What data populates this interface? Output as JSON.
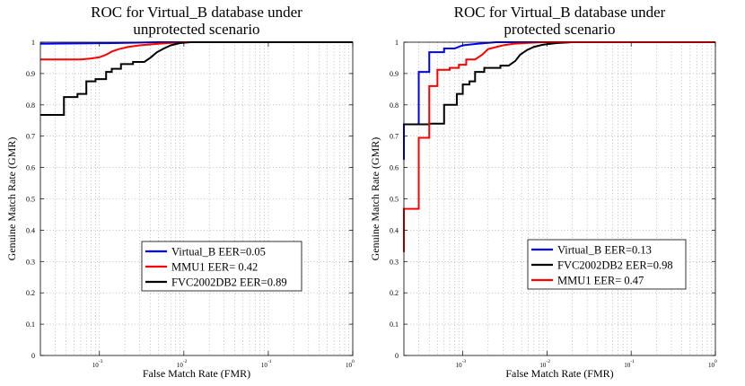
{
  "chart_data": [
    {
      "type": "line",
      "title": [
        "ROC for Virtual_B database under",
        "unprotected scenario"
      ],
      "xlabel": "False Match Rate (FMR)",
      "ylabel": "Genuine Match Rate (GMR)",
      "xscale": "log",
      "xlim": [
        0.0002,
        1
      ],
      "ylim": [
        0,
        1
      ],
      "grid": true,
      "legend_position": "center-right",
      "x_ticks": [
        {
          "value": 0.001,
          "base": "10",
          "exp": "-3"
        },
        {
          "value": 0.01,
          "base": "10",
          "exp": "-2"
        },
        {
          "value": 0.1,
          "base": "10",
          "exp": "-1"
        },
        {
          "value": 1,
          "base": "10",
          "exp": "0"
        }
      ],
      "y_ticks": [
        {
          "value": 0,
          "label": "0"
        },
        {
          "value": 0.1,
          "label": "0.1"
        },
        {
          "value": 0.2,
          "label": "0.2"
        },
        {
          "value": 0.3,
          "label": "0.3"
        },
        {
          "value": 0.4,
          "label": "0.4"
        },
        {
          "value": 0.5,
          "label": "0.5"
        },
        {
          "value": 0.6,
          "label": "0.6"
        },
        {
          "value": 0.7,
          "label": "0.7"
        },
        {
          "value": 0.8,
          "label": "0.8"
        },
        {
          "value": 0.9,
          "label": "0.9"
        },
        {
          "value": 1,
          "label": "1"
        }
      ],
      "series": [
        {
          "name": "Virtual_B EER=0.05",
          "color": "#0000ff",
          "points": [
            [
              0.0002,
              0.995
            ],
            [
              0.0015,
              0.997
            ],
            [
              0.005,
              1.0
            ],
            [
              1,
              1.0
            ]
          ]
        },
        {
          "name": "MMU1 EER= 0.42",
          "color": "#ff0000",
          "points": [
            [
              0.0002,
              0.945
            ],
            [
              0.0006,
              0.945
            ],
            [
              0.0008,
              0.948
            ],
            [
              0.001,
              0.952
            ],
            [
              0.0012,
              0.96
            ],
            [
              0.0014,
              0.97
            ],
            [
              0.0017,
              0.978
            ],
            [
              0.0022,
              0.985
            ],
            [
              0.003,
              0.99
            ],
            [
              0.005,
              0.995
            ],
            [
              0.007,
              0.998
            ],
            [
              0.01,
              1.0
            ],
            [
              1,
              1.0
            ]
          ]
        },
        {
          "name": "FVC2002DB2 EER=0.89",
          "color": "#000000",
          "points": [
            [
              0.0002,
              0.768
            ],
            [
              0.00038,
              0.768
            ],
            [
              0.00038,
              0.825
            ],
            [
              0.00055,
              0.825
            ],
            [
              0.00055,
              0.835
            ],
            [
              0.0007,
              0.835
            ],
            [
              0.0007,
              0.875
            ],
            [
              0.0009,
              0.875
            ],
            [
              0.0009,
              0.882
            ],
            [
              0.0012,
              0.882
            ],
            [
              0.0012,
              0.905
            ],
            [
              0.0014,
              0.905
            ],
            [
              0.0014,
              0.915
            ],
            [
              0.0018,
              0.915
            ],
            [
              0.0018,
              0.93
            ],
            [
              0.0025,
              0.93
            ],
            [
              0.0025,
              0.937
            ],
            [
              0.0034,
              0.937
            ],
            [
              0.004,
              0.95
            ],
            [
              0.0048,
              0.968
            ],
            [
              0.0058,
              0.98
            ],
            [
              0.007,
              0.99
            ],
            [
              0.009,
              0.997
            ],
            [
              0.012,
              1.0
            ],
            [
              1,
              1.0
            ]
          ]
        }
      ]
    },
    {
      "type": "line",
      "title": [
        "ROC for Virtual_B database under",
        "protected scenario"
      ],
      "xlabel": "False Match Rate (FMR)",
      "ylabel": "Genuine Match Rate (GMR)",
      "xscale": "log",
      "xlim": [
        0.0002,
        1
      ],
      "ylim": [
        0,
        1
      ],
      "grid": true,
      "legend_position": "center-right",
      "x_ticks": [
        {
          "value": 0.001,
          "base": "10",
          "exp": "-3"
        },
        {
          "value": 0.01,
          "base": "10",
          "exp": "-2"
        },
        {
          "value": 0.1,
          "base": "10",
          "exp": "-1"
        },
        {
          "value": 1,
          "base": "10",
          "exp": "0"
        }
      ],
      "y_ticks": [
        {
          "value": 0,
          "label": "0"
        },
        {
          "value": 0.1,
          "label": "0.1"
        },
        {
          "value": 0.2,
          "label": "0.2"
        },
        {
          "value": 0.3,
          "label": "0.3"
        },
        {
          "value": 0.4,
          "label": "0.4"
        },
        {
          "value": 0.5,
          "label": "0.5"
        },
        {
          "value": 0.6,
          "label": "0.6"
        },
        {
          "value": 0.7,
          "label": "0.7"
        },
        {
          "value": 0.8,
          "label": "0.8"
        },
        {
          "value": 0.9,
          "label": "0.9"
        },
        {
          "value": 1,
          "label": "1"
        }
      ],
      "series": [
        {
          "name": "Virtual_B EER=0.13",
          "color": "#0000ff",
          "points": [
            [
              0.0002,
              0.625
            ],
            [
              0.0002,
              0.738
            ],
            [
              0.0003,
              0.738
            ],
            [
              0.0003,
              0.905
            ],
            [
              0.0004,
              0.905
            ],
            [
              0.0004,
              0.968
            ],
            [
              0.0006,
              0.968
            ],
            [
              0.0006,
              0.98
            ],
            [
              0.0008,
              0.98
            ],
            [
              0.001,
              0.99
            ],
            [
              0.0015,
              0.995
            ],
            [
              0.0025,
              1.0
            ],
            [
              1,
              1.0
            ]
          ]
        },
        {
          "name": "FVC2002DB2 EER=0.98",
          "color": "#000000",
          "points": [
            [
              0.0002,
              0.738
            ],
            [
              0.0004,
              0.738
            ],
            [
              0.0004,
              0.74
            ],
            [
              0.0006,
              0.74
            ],
            [
              0.0006,
              0.8
            ],
            [
              0.00085,
              0.8
            ],
            [
              0.00085,
              0.835
            ],
            [
              0.001,
              0.835
            ],
            [
              0.001,
              0.865
            ],
            [
              0.0012,
              0.865
            ],
            [
              0.0012,
              0.875
            ],
            [
              0.0014,
              0.875
            ],
            [
              0.0014,
              0.905
            ],
            [
              0.0018,
              0.905
            ],
            [
              0.0018,
              0.918
            ],
            [
              0.0028,
              0.918
            ],
            [
              0.0028,
              0.925
            ],
            [
              0.0035,
              0.925
            ],
            [
              0.0042,
              0.94
            ],
            [
              0.0048,
              0.96
            ],
            [
              0.0058,
              0.975
            ],
            [
              0.007,
              0.985
            ],
            [
              0.009,
              0.992
            ],
            [
              0.013,
              0.997
            ],
            [
              0.02,
              1.0
            ],
            [
              1,
              1.0
            ]
          ]
        },
        {
          "name": "MMU1 EER= 0.47",
          "color": "#ff0000",
          "points": [
            [
              0.0002,
              0.33
            ],
            [
              0.0002,
              0.468
            ],
            [
              0.0003,
              0.468
            ],
            [
              0.0003,
              0.695
            ],
            [
              0.0004,
              0.695
            ],
            [
              0.0004,
              0.86
            ],
            [
              0.0005,
              0.86
            ],
            [
              0.0005,
              0.912
            ],
            [
              0.0007,
              0.912
            ],
            [
              0.0007,
              0.918
            ],
            [
              0.0009,
              0.918
            ],
            [
              0.0009,
              0.928
            ],
            [
              0.0011,
              0.928
            ],
            [
              0.0011,
              0.945
            ],
            [
              0.0014,
              0.945
            ],
            [
              0.0017,
              0.96
            ],
            [
              0.002,
              0.978
            ],
            [
              0.003,
              0.99
            ],
            [
              0.004,
              0.995
            ],
            [
              0.006,
              0.998
            ],
            [
              0.009,
              1.0
            ],
            [
              1,
              1.0
            ]
          ]
        }
      ]
    }
  ]
}
